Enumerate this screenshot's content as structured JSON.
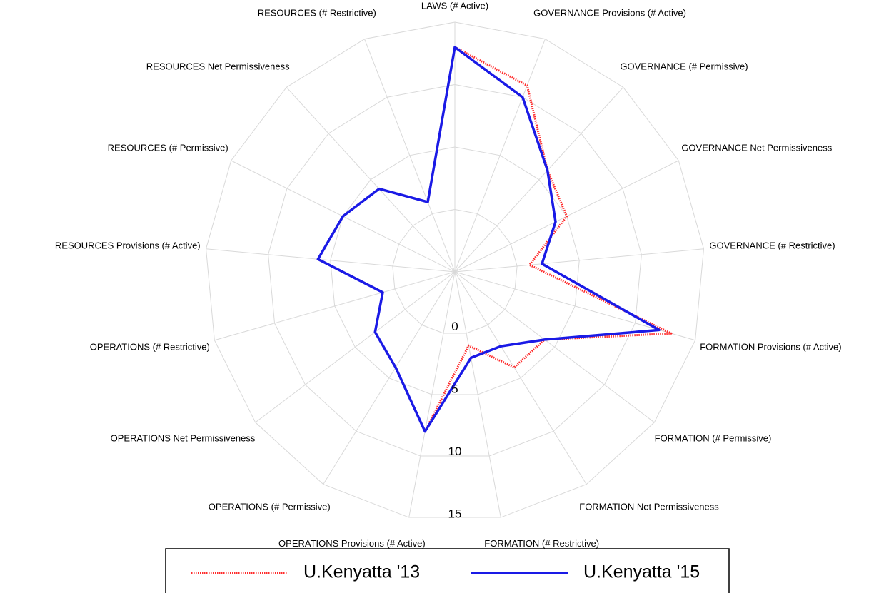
{
  "chart_data": {
    "type": "radar",
    "categories": [
      "LAWS (# Active)",
      "GOVERNANCE Provisions (# Active)",
      "GOVERNANCE (# Permissive)",
      "GOVERNANCE Net Permissiveness",
      "GOVERNANCE (# Restrictive)",
      "FORMATION Provisions (# Active)",
      "FORMATION (# Permissive)",
      "FORMATION Net Permissiveness",
      "FORMATION (# Restrictive)",
      "OPERATIONS Provisions (# Active)",
      "OPERATIONS (# Permissive)",
      "OPERATIONS Net Permissiveness",
      "OPERATIONS (# Restrictive)",
      "RESOURCES Provisions (# Active)",
      "RESOURCES (# Permissive)",
      "RESOURCES Net Permissiveness",
      "RESOURCES (# Restrictive)"
    ],
    "series": [
      {
        "name": "U.Kenyatta '13",
        "color": "#ff2a2a",
        "style": "dotted",
        "values": [
          13,
          11,
          6,
          5,
          1,
          13,
          4,
          4,
          1,
          8,
          4,
          3,
          1,
          6,
          5,
          4,
          1
        ]
      },
      {
        "name": "U.Kenyatta '15",
        "color": "#1a1ae6",
        "style": "solid",
        "values": [
          13,
          10,
          6,
          4,
          2,
          12,
          4,
          2,
          2,
          8,
          4,
          3,
          1,
          6,
          5,
          4,
          1
        ]
      }
    ],
    "ylim": [
      -5,
      15
    ],
    "yticks": [
      0,
      5,
      10,
      15
    ],
    "grid": true,
    "legend": "bottom"
  }
}
